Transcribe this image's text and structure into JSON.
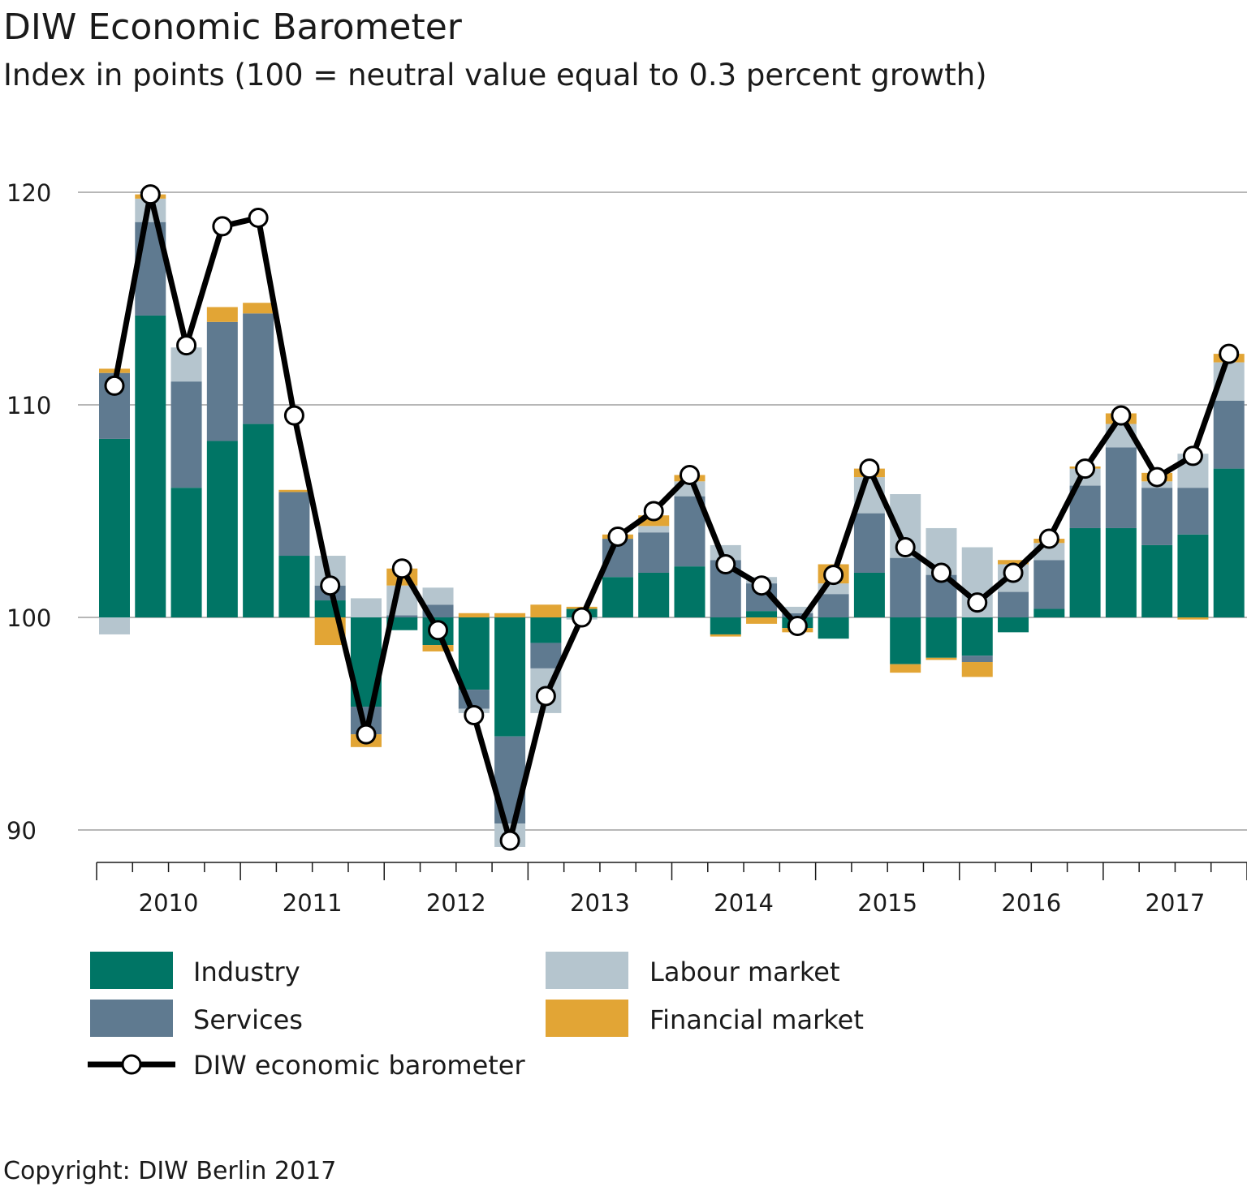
{
  "chart_data": {
    "type": "bar",
    "title": "DIW Economic Barometer",
    "subtitle": "Index in points (100 = neutral value equal to 0.3 percent growth)",
    "baseline": 100,
    "ylim": [
      88.5,
      121
    ],
    "yticks": [
      90,
      100,
      110,
      120
    ],
    "grid": true,
    "legend_position": "bottom",
    "years": [
      "2010",
      "2011",
      "2012",
      "2013",
      "2014",
      "2015",
      "2016",
      "2017"
    ],
    "colors": {
      "industry": "#007565",
      "services": "#5f7a90",
      "labour": "#b5c5ce",
      "financial": "#e2a535",
      "line": "#000000",
      "grid": "#8c8c8c"
    },
    "series": [
      {
        "key": "industry",
        "name": "Industry",
        "values": [
          8.4,
          14.2,
          6.1,
          8.3,
          9.1,
          2.9,
          0.8,
          -4.2,
          -0.6,
          -1.3,
          -3.4,
          -5.6,
          -1.2,
          0.4,
          1.9,
          2.1,
          2.4,
          -0.8,
          0.3,
          -0.5,
          -1.0,
          2.1,
          -2.2,
          -1.9,
          -1.8,
          -0.7,
          0.4,
          4.2,
          4.2,
          3.4,
          3.9,
          7.0
        ]
      },
      {
        "key": "services",
        "name": "Services",
        "values": [
          3.1,
          4.4,
          5.0,
          5.6,
          5.2,
          3.0,
          0.7,
          -1.3,
          0.1,
          0.6,
          -0.9,
          -4.1,
          -1.2,
          0.0,
          1.8,
          1.9,
          3.3,
          2.7,
          1.3,
          0.2,
          1.1,
          2.8,
          2.8,
          2.0,
          -0.3,
          1.2,
          2.3,
          2.0,
          3.8,
          2.7,
          2.2,
          3.2
        ]
      },
      {
        "key": "labour",
        "name": "Labour market",
        "values": [
          -0.8,
          1.1,
          1.6,
          0.0,
          0.0,
          0.0,
          1.4,
          0.9,
          1.4,
          0.8,
          -0.2,
          -1.1,
          -2.1,
          -0.1,
          0.0,
          0.3,
          0.7,
          0.7,
          0.3,
          0.3,
          0.5,
          1.7,
          3.0,
          2.2,
          3.3,
          1.3,
          0.8,
          0.8,
          1.1,
          0.3,
          1.6,
          1.8
        ]
      },
      {
        "key": "financial",
        "name": "Financial market",
        "values": [
          0.2,
          0.2,
          0.0,
          0.7,
          0.5,
          0.1,
          -1.3,
          -0.6,
          0.8,
          -0.3,
          0.2,
          0.2,
          0.6,
          0.1,
          0.2,
          0.5,
          0.3,
          -0.1,
          -0.3,
          -0.2,
          0.9,
          0.4,
          -0.4,
          -0.1,
          -0.7,
          0.2,
          0.2,
          0.1,
          0.5,
          0.4,
          -0.1,
          0.4
        ]
      }
    ],
    "line": {
      "name": "DIW economic barometer",
      "values": [
        110.9,
        119.9,
        112.8,
        118.4,
        118.8,
        109.5,
        101.5,
        94.5,
        102.3,
        99.4,
        95.4,
        89.5,
        96.3,
        100.0,
        103.8,
        105.0,
        106.7,
        102.5,
        101.5,
        99.6,
        102.0,
        107.0,
        103.3,
        102.1,
        100.7,
        102.1,
        103.7,
        107.0,
        109.5,
        106.6,
        107.6,
        112.4
      ]
    },
    "legend": [
      {
        "key": "industry",
        "label": "Industry"
      },
      {
        "key": "labour",
        "label": "Labour market"
      },
      {
        "key": "services",
        "label": "Services"
      },
      {
        "key": "financial",
        "label": "Financial market"
      },
      {
        "key": "line",
        "label": "DIW economic barometer"
      }
    ]
  },
  "footer": {
    "copyright": "Copyright: DIW Berlin 2017"
  }
}
